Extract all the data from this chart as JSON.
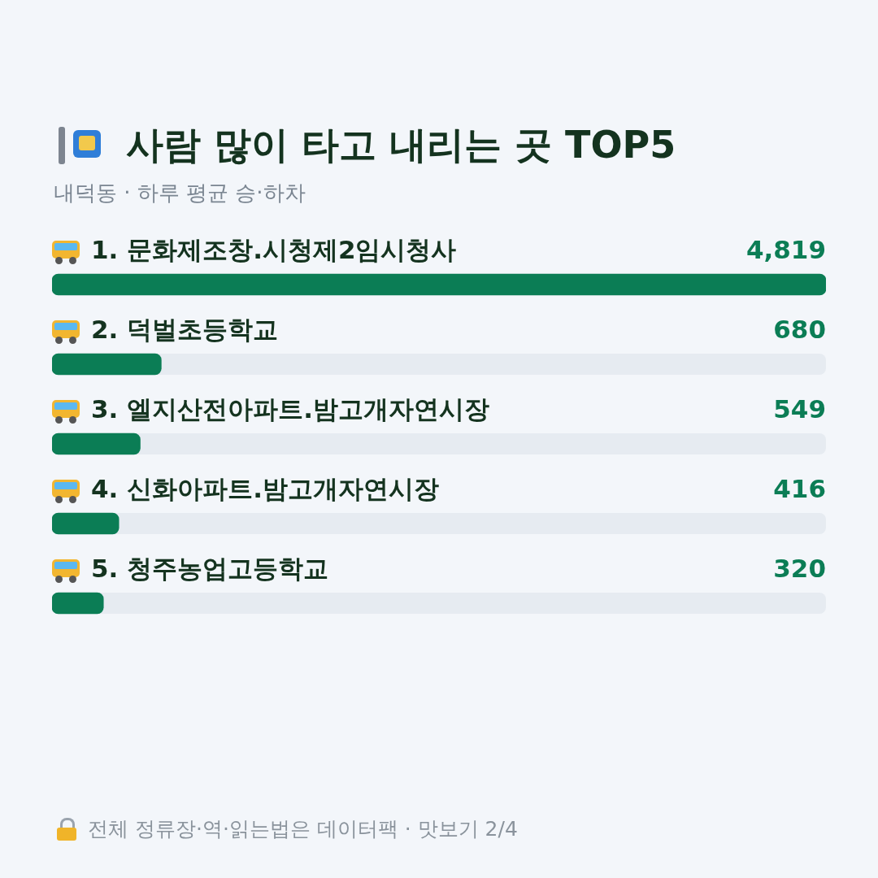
{
  "chart_data": {
    "type": "bar",
    "orientation": "horizontal",
    "title": "사람 많이 타고 내리는 곳 TOP5",
    "subtitle": "내덕동 · 하루 평균 승·하차",
    "categories": [
      "1. 문화제조창.시청제2임시청사",
      "2. 덕벌초등학교",
      "3. 엘지산전아파트.밤고개자연시장",
      "4. 신화아파트.밤고개자연시장",
      "5. 청주농업고등학교"
    ],
    "values": [
      4819,
      680,
      549,
      416,
      320
    ],
    "color": "#0b7d55",
    "data_labels": true,
    "value_labels": [
      "4,819",
      "680",
      "549",
      "416",
      "320"
    ],
    "tick_labels": false,
    "legend": false,
    "annotations": [
      "전체 정류장·역·읽는법은 데이터팩 · 맛보기 2/4"
    ]
  }
}
